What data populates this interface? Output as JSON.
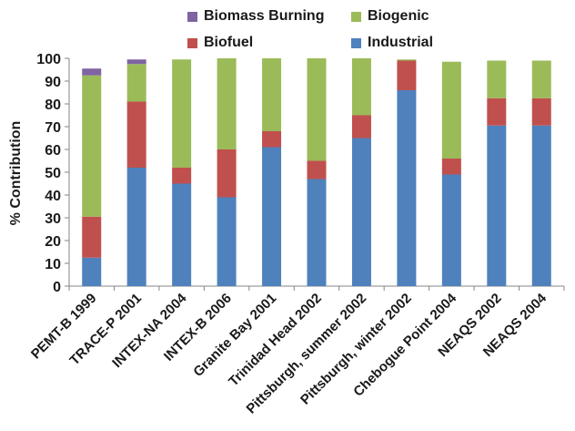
{
  "chart_data": {
    "type": "bar",
    "stacked": true,
    "title": "",
    "xlabel": "",
    "ylabel": "% Contribution",
    "ylim": [
      0,
      100
    ],
    "yticks": [
      0,
      10,
      20,
      30,
      40,
      50,
      60,
      70,
      80,
      90,
      100
    ],
    "grid": false,
    "legend_position": "top",
    "categories": [
      "PEMT-B 1999",
      "TRACE-P 2001",
      "INTEX-NA 2004",
      "INTEX-B 2006",
      "Granite Bay 2001",
      "Trinidad Head 2002",
      "Pittsburgh, summer 2002",
      "Pittsburgh, winter 2002",
      "Chebogue Point 2004",
      "NEAQS 2002",
      "NEAQS 2004"
    ],
    "series": [
      {
        "name": "Industrial",
        "color": "#4f81bd",
        "values": [
          12.5,
          52,
          45,
          39,
          61,
          47,
          65,
          86,
          49,
          70.5,
          70.5
        ]
      },
      {
        "name": "Biofuel",
        "color": "#c0504d",
        "values": [
          18,
          29,
          7,
          21,
          7,
          8,
          10,
          13,
          7,
          12,
          12
        ]
      },
      {
        "name": "Biogenic",
        "color": "#9bbb59",
        "values": [
          62,
          16.5,
          47.5,
          40,
          32,
          45,
          25,
          0.5,
          42.5,
          16.5,
          16.5
        ]
      },
      {
        "name": "Biomass Burning",
        "color": "#8064a2",
        "values": [
          3,
          2,
          0,
          0,
          0,
          0,
          0,
          0,
          0,
          0,
          0
        ]
      }
    ]
  },
  "legend": [
    {
      "label": "Biomass Burning",
      "color": "#8064a2"
    },
    {
      "label": "Biogenic",
      "color": "#9bbb59"
    },
    {
      "label": "Biofuel",
      "color": "#c0504d"
    },
    {
      "label": "Industrial",
      "color": "#4f81bd"
    }
  ]
}
